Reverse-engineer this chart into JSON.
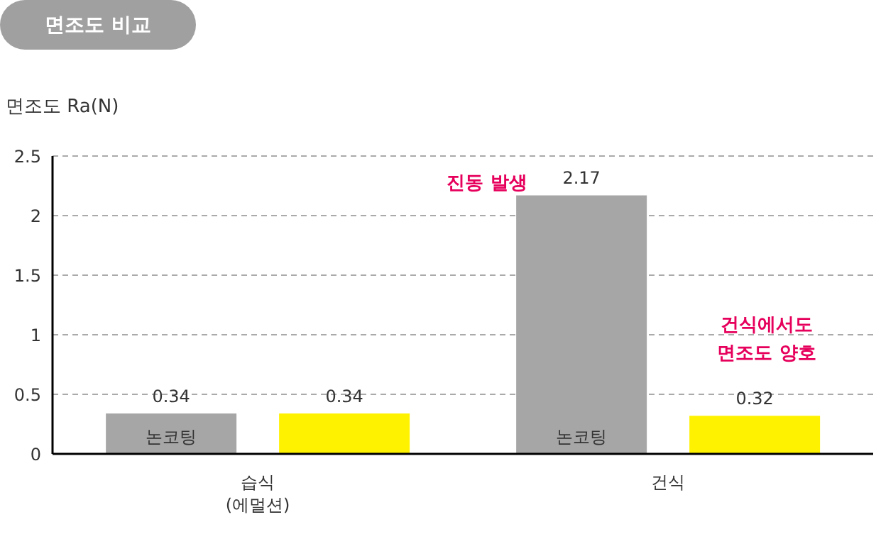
{
  "chart_data": {
    "type": "bar",
    "title": "면조도 비교",
    "ylabel": "면조도 Ra(N)",
    "categories": [
      "습식\n(에멀션)",
      "건식"
    ],
    "series": [
      {
        "name": "논코팅",
        "color": "#a6a6a6",
        "values": [
          0.34,
          2.17
        ]
      },
      {
        "color": "#fff200",
        "values": [
          0.34,
          0.32
        ]
      }
    ],
    "ylim": [
      0,
      2.5
    ],
    "yticks": [
      0,
      0.5,
      1,
      1.5,
      2,
      2.5
    ],
    "grid": "y",
    "data_labels": true,
    "annotations": [
      "진동 발생",
      "건식에서도\n면조도 양호"
    ]
  }
}
